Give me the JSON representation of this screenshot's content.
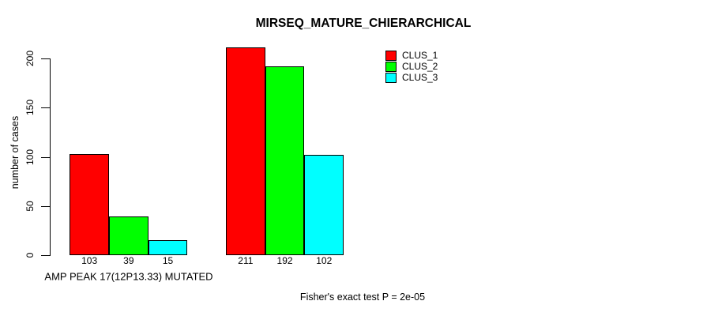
{
  "window": {
    "background_color": "#ffffff",
    "text_color": "#000000"
  },
  "chart_data": {
    "type": "bar",
    "title": "MIRSEQ_MATURE_CHIERARCHICAL",
    "ylabel": "number of cases",
    "xlabel": "AMP PEAK 17(12P13.33) MUTATED",
    "ylim": [
      0,
      200
    ],
    "yticks": [
      0,
      50,
      100,
      150,
      200
    ],
    "grid": false,
    "axis_color": "#000000",
    "group_labels": [
      "AMP PEAK 17(12P13.33) MUTATED",
      ""
    ],
    "series": [
      {
        "name": "CLUS_1",
        "color": "#ff0000",
        "values": [
          103,
          211
        ]
      },
      {
        "name": "CLUS_2",
        "color": "#00ff00",
        "values": [
          39,
          192
        ]
      },
      {
        "name": "CLUS_3",
        "color": "#00ffff",
        "values": [
          15,
          102
        ]
      }
    ],
    "show_bar_values": true,
    "bar_value_labels": [
      [
        103,
        39,
        15
      ],
      [
        211,
        192,
        102
      ]
    ],
    "legend": {
      "position": "top-right",
      "entries": [
        "CLUS_1",
        "CLUS_2",
        "CLUS_3"
      ]
    },
    "annotation": "Fisher's exact test P = 2e-05"
  }
}
